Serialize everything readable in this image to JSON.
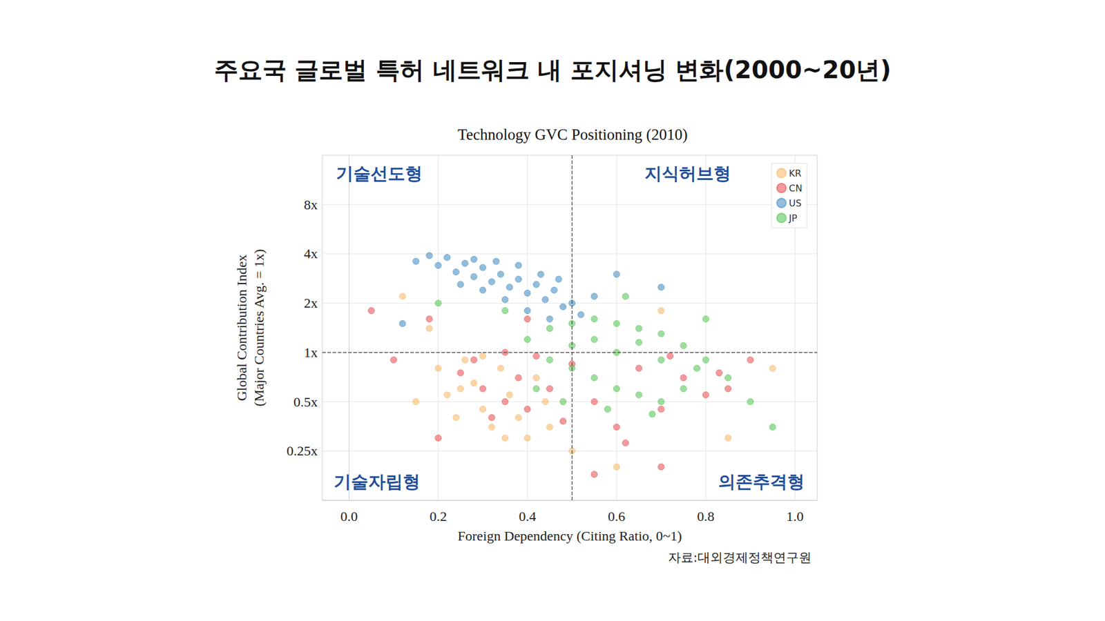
{
  "chart_data": {
    "type": "scatter",
    "title": "주요국 글로벌 특허 네트워크 내 포지셔닝 변화(2000~20년)",
    "subtitle": "Technology GVC Positioning (2010)",
    "x_label": "Foreign Dependency (Citing Ratio, 0~1)",
    "y_label": "Global Contribution Index\n(Major Countries Avg. = 1x)",
    "source": "자료:대외경제정책연구원",
    "annotations": [
      "기술선도형",
      "지식허브형",
      "기술자립형",
      "의존추격형"
    ],
    "reference_lines": {
      "x": 0.5,
      "y": 1
    },
    "xlim": [
      -0.06,
      1.05
    ],
    "xticks": [
      {
        "value": 0,
        "label": "0.0"
      },
      0.2,
      0.4,
      0.6,
      0.8,
      {
        "value": 1,
        "label": "1.0"
      }
    ],
    "ylim": [
      0.125,
      16
    ],
    "yticks": [
      {
        "value": 0.25,
        "label": "0.25x"
      },
      {
        "value": 0.5,
        "label": "0.5x"
      },
      {
        "value": 1,
        "label": "1x"
      },
      {
        "value": 2,
        "label": "2x"
      },
      {
        "value": 4,
        "label": "4x"
      },
      {
        "value": 8,
        "label": "8x"
      }
    ],
    "log": "y",
    "grid": true,
    "legend": "upper right",
    "marker": "circle",
    "series": [
      {
        "name": "KR",
        "color": "#f5b461",
        "values": [
          [
            0.2,
            0.8
          ],
          [
            0.22,
            0.55
          ],
          [
            0.24,
            0.4
          ],
          [
            0.26,
            0.9
          ],
          [
            0.28,
            0.65
          ],
          [
            0.3,
            0.45
          ],
          [
            0.32,
            0.35
          ],
          [
            0.34,
            0.8
          ],
          [
            0.36,
            0.55
          ],
          [
            0.38,
            0.4
          ],
          [
            0.4,
            0.3
          ],
          [
            0.42,
            0.7
          ],
          [
            0.44,
            0.5
          ],
          [
            0.3,
            0.95
          ],
          [
            0.25,
            0.6
          ],
          [
            0.35,
            0.3
          ],
          [
            0.45,
            0.35
          ],
          [
            0.18,
            1.4
          ],
          [
            0.15,
            0.5
          ],
          [
            0.5,
            0.25
          ],
          [
            0.6,
            0.2
          ],
          [
            0.12,
            2.2
          ],
          [
            0.85,
            0.3
          ],
          [
            0.7,
            1.8
          ],
          [
            0.95,
            0.8
          ]
        ]
      },
      {
        "name": "CN",
        "color": "#e8474a",
        "values": [
          [
            0.28,
            0.9
          ],
          [
            0.3,
            0.6
          ],
          [
            0.32,
            0.4
          ],
          [
            0.35,
            1.0
          ],
          [
            0.38,
            0.7
          ],
          [
            0.4,
            0.45
          ],
          [
            0.42,
            0.95
          ],
          [
            0.45,
            0.6
          ],
          [
            0.48,
            0.38
          ],
          [
            0.5,
            0.85
          ],
          [
            0.55,
            0.5
          ],
          [
            0.6,
            0.35
          ],
          [
            0.65,
            0.8
          ],
          [
            0.7,
            0.45
          ],
          [
            0.75,
            0.7
          ],
          [
            0.8,
            0.55
          ],
          [
            0.85,
            0.6
          ],
          [
            0.83,
            0.75
          ],
          [
            0.72,
            0.95
          ],
          [
            0.35,
            0.5
          ],
          [
            0.25,
            0.75
          ],
          [
            0.18,
            1.6
          ],
          [
            0.1,
            0.9
          ],
          [
            0.55,
            0.18
          ],
          [
            0.7,
            0.2
          ],
          [
            0.9,
            0.9
          ],
          [
            0.4,
            1.6
          ],
          [
            0.62,
            0.28
          ],
          [
            0.2,
            0.3
          ],
          [
            0.05,
            1.8
          ]
        ]
      },
      {
        "name": "US",
        "color": "#3a87c0",
        "values": [
          [
            0.15,
            3.6
          ],
          [
            0.18,
            3.9
          ],
          [
            0.2,
            3.4
          ],
          [
            0.22,
            3.8
          ],
          [
            0.24,
            3.1
          ],
          [
            0.26,
            3.5
          ],
          [
            0.28,
            2.9
          ],
          [
            0.3,
            3.3
          ],
          [
            0.32,
            2.7
          ],
          [
            0.34,
            3.0
          ],
          [
            0.36,
            2.5
          ],
          [
            0.38,
            2.8
          ],
          [
            0.4,
            2.3
          ],
          [
            0.42,
            2.6
          ],
          [
            0.44,
            2.1
          ],
          [
            0.46,
            2.4
          ],
          [
            0.48,
            1.9
          ],
          [
            0.5,
            2.0
          ],
          [
            0.3,
            2.4
          ],
          [
            0.35,
            2.1
          ],
          [
            0.4,
            1.8
          ],
          [
            0.45,
            1.6
          ],
          [
            0.25,
            2.6
          ],
          [
            0.28,
            3.7
          ],
          [
            0.33,
            3.6
          ],
          [
            0.38,
            3.4
          ],
          [
            0.43,
            3.0
          ],
          [
            0.47,
            2.8
          ],
          [
            0.52,
            1.7
          ],
          [
            0.55,
            2.2
          ],
          [
            0.12,
            1.5
          ],
          [
            0.6,
            3.0
          ],
          [
            0.7,
            2.5
          ]
        ]
      },
      {
        "name": "JP",
        "color": "#4cc24c",
        "values": [
          [
            0.4,
            1.2
          ],
          [
            0.45,
            1.4
          ],
          [
            0.5,
            1.5
          ],
          [
            0.55,
            1.6
          ],
          [
            0.6,
            1.5
          ],
          [
            0.65,
            1.4
          ],
          [
            0.7,
            1.3
          ],
          [
            0.75,
            1.1
          ],
          [
            0.8,
            0.9
          ],
          [
            0.85,
            0.7
          ],
          [
            0.45,
            0.9
          ],
          [
            0.5,
            0.8
          ],
          [
            0.55,
            0.7
          ],
          [
            0.6,
            0.6
          ],
          [
            0.65,
            0.55
          ],
          [
            0.7,
            0.5
          ],
          [
            0.75,
            0.6
          ],
          [
            0.5,
            1.1
          ],
          [
            0.6,
            1.0
          ],
          [
            0.7,
            0.9
          ],
          [
            0.55,
            1.2
          ],
          [
            0.65,
            1.15
          ],
          [
            0.42,
            0.6
          ],
          [
            0.48,
            0.5
          ],
          [
            0.58,
            0.45
          ],
          [
            0.68,
            0.42
          ],
          [
            0.78,
            0.8
          ],
          [
            0.9,
            0.5
          ],
          [
            0.35,
            1.8
          ],
          [
            0.62,
            2.2
          ],
          [
            0.8,
            1.6
          ],
          [
            0.95,
            0.35
          ],
          [
            0.2,
            2.0
          ]
        ]
      }
    ]
  }
}
